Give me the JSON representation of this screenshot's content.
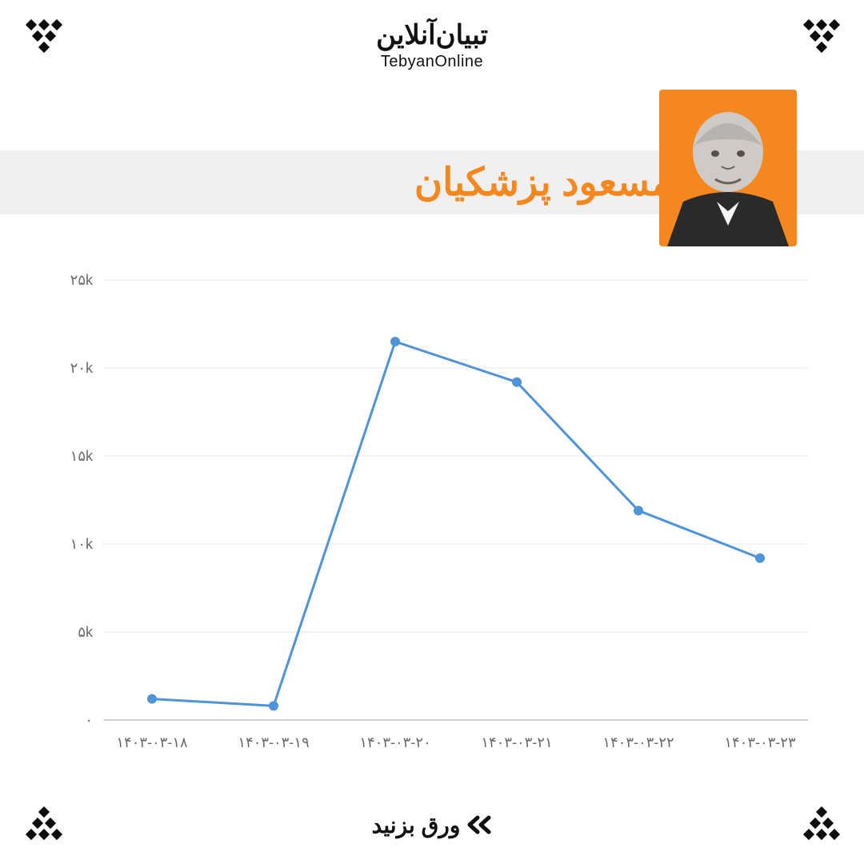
{
  "brand": {
    "fa": "تبیان‌آنلاین",
    "en": "TebyanOnline"
  },
  "title": {
    "text": "مسعود پزشکیان",
    "color": "#f5871f",
    "fontsize": 48,
    "fontweight": 900
  },
  "title_band_bg": "#f0f0f0",
  "portrait_bg": "#f5871f",
  "decor_color": "#0d0d0d",
  "chart": {
    "type": "line",
    "background_color": "#ffffff",
    "grid_color": "#e7e7e7",
    "axis_color": "#bfbfbf",
    "tick_label_color": "#6b6b6b",
    "tick_fontsize": 18,
    "line_color": "#4f93d8",
    "line_width": 3,
    "marker_color": "#4f93d8",
    "marker_radius": 6,
    "ylim": [
      0,
      25000
    ],
    "ytick_step": 5000,
    "ytick_labels": [
      "۰",
      "۵k",
      "۱۰k",
      "۱۵k",
      "۲۰k",
      "۲۵k"
    ],
    "x_labels": [
      "۱۴۰۳-۰۳-۱۸",
      "۱۴۰۳-۰۳-۱۹",
      "۱۴۰۳-۰۳-۲۰",
      "۱۴۰۳-۰۳-۲۱",
      "۱۴۰۳-۰۳-۲۲",
      "۱۴۰۳-۰۳-۲۳"
    ],
    "values": [
      1200,
      800,
      21500,
      19200,
      11900,
      9200
    ]
  },
  "footer": {
    "swipe_label": "ورق بزنید"
  }
}
